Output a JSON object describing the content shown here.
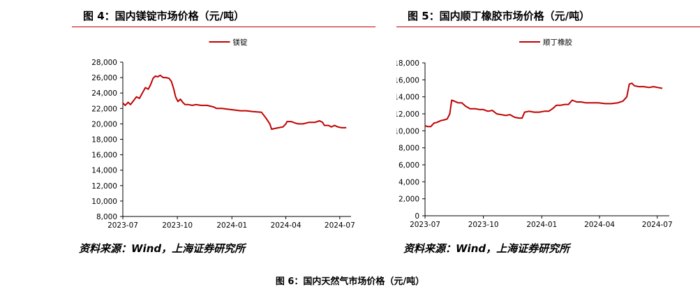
{
  "figures": [
    {
      "title": "图 4：国内镁锭市场价格（元/吨）",
      "source": "资料来源：Wind，上海证券研究所"
    },
    {
      "title": "图 5：国内顺丁橡胶市场价格（元/吨）",
      "source": "资料来源：Wind，上海证券研究所"
    }
  ],
  "caption": "图 6：国内天然气市场价格（元/吨）",
  "chart_data": [
    {
      "type": "line",
      "title": "",
      "xlabel": "",
      "ylabel": "",
      "xlim": [
        "2023-07-01",
        "2024-07-20"
      ],
      "ylim": [
        8000,
        28000
      ],
      "yticks": [
        8000,
        10000,
        12000,
        14000,
        16000,
        18000,
        20000,
        22000,
        24000,
        26000,
        28000
      ],
      "ytick_labels": [
        "8,000",
        "10,000",
        "12,000",
        "14,000",
        "16,000",
        "18,000",
        "20,000",
        "22,000",
        "24,000",
        "26,000",
        "28,000"
      ],
      "xticks": [
        "2023-07-01",
        "2023-10-01",
        "2024-01-01",
        "2024-04-01",
        "2024-07-01"
      ],
      "xtick_labels": [
        "2023-07",
        "2023-10",
        "2024-01",
        "2024-04",
        "2024-07"
      ],
      "grid": false,
      "legend": "top-center",
      "series": [
        {
          "name": "镁锭",
          "color": "#c00000",
          "points": [
            [
              "2023-07-01",
              22700
            ],
            [
              "2023-07-05",
              22400
            ],
            [
              "2023-07-10",
              22800
            ],
            [
              "2023-07-14",
              22500
            ],
            [
              "2023-07-19",
              23000
            ],
            [
              "2023-07-24",
              23500
            ],
            [
              "2023-07-29",
              23300
            ],
            [
              "2023-08-03",
              24000
            ],
            [
              "2023-08-08",
              24700
            ],
            [
              "2023-08-13",
              24500
            ],
            [
              "2023-08-17",
              25100
            ],
            [
              "2023-08-21",
              25900
            ],
            [
              "2023-08-25",
              26200
            ],
            [
              "2023-08-29",
              26100
            ],
            [
              "2023-09-02",
              26300
            ],
            [
              "2023-09-07",
              26000
            ],
            [
              "2023-09-12",
              26000
            ],
            [
              "2023-09-17",
              25900
            ],
            [
              "2023-09-21",
              25500
            ],
            [
              "2023-09-25",
              24500
            ],
            [
              "2023-09-28",
              23500
            ],
            [
              "2023-10-02",
              22900
            ],
            [
              "2023-10-06",
              23200
            ],
            [
              "2023-10-10",
              22800
            ],
            [
              "2023-10-14",
              22500
            ],
            [
              "2023-10-20",
              22500
            ],
            [
              "2023-10-26",
              22400
            ],
            [
              "2023-11-01",
              22500
            ],
            [
              "2023-11-10",
              22400
            ],
            [
              "2023-11-20",
              22400
            ],
            [
              "2023-12-01",
              22200
            ],
            [
              "2023-12-06",
              22000
            ],
            [
              "2023-12-15",
              22000
            ],
            [
              "2023-12-25",
              21900
            ],
            [
              "2024-01-05",
              21800
            ],
            [
              "2024-01-15",
              21700
            ],
            [
              "2024-01-25",
              21700
            ],
            [
              "2024-02-05",
              21600
            ],
            [
              "2024-02-20",
              21500
            ],
            [
              "2024-02-28",
              20700
            ],
            [
              "2024-03-05",
              20000
            ],
            [
              "2024-03-08",
              19300
            ],
            [
              "2024-03-13",
              19400
            ],
            [
              "2024-03-20",
              19500
            ],
            [
              "2024-03-27",
              19600
            ],
            [
              "2024-04-01",
              20000
            ],
            [
              "2024-04-03",
              20300
            ],
            [
              "2024-04-10",
              20300
            ],
            [
              "2024-04-17",
              20100
            ],
            [
              "2024-04-22",
              20000
            ],
            [
              "2024-04-30",
              20000
            ],
            [
              "2024-05-10",
              20200
            ],
            [
              "2024-05-20",
              20200
            ],
            [
              "2024-05-28",
              20400
            ],
            [
              "2024-06-02",
              20200
            ],
            [
              "2024-06-05",
              19800
            ],
            [
              "2024-06-12",
              19800
            ],
            [
              "2024-06-17",
              19600
            ],
            [
              "2024-06-22",
              19800
            ],
            [
              "2024-06-28",
              19600
            ],
            [
              "2024-07-04",
              19500
            ],
            [
              "2024-07-12",
              19500
            ]
          ]
        }
      ]
    },
    {
      "type": "line",
      "title": "",
      "xlabel": "",
      "ylabel": "",
      "xlim": [
        "2023-07-01",
        "2024-07-20"
      ],
      "ylim": [
        0,
        18000
      ],
      "yticks": [
        0,
        2000,
        4000,
        6000,
        8000,
        10000,
        12000,
        14000,
        16000,
        18000
      ],
      "ytick_labels": [
        "0",
        "2,000",
        "4,000",
        "6,000",
        "8,000",
        "10,000",
        "12,000",
        "14,000",
        "16,000",
        "18,000"
      ],
      "xticks": [
        "2023-07-01",
        "2023-10-01",
        "2024-01-01",
        "2024-04-01",
        "2024-07-01"
      ],
      "xtick_labels": [
        "2023-07",
        "2023-10",
        "2024-01",
        "2024-04",
        "2024-07"
      ],
      "grid": false,
      "legend": "top-center",
      "series": [
        {
          "name": "顺丁橡胶",
          "color": "#c00000",
          "points": [
            [
              "2023-07-01",
              10600
            ],
            [
              "2023-07-05",
              10500
            ],
            [
              "2023-07-10",
              10500
            ],
            [
              "2023-07-15",
              10900
            ],
            [
              "2023-07-20",
              11000
            ],
            [
              "2023-07-26",
              11200
            ],
            [
              "2023-08-01",
              11300
            ],
            [
              "2023-08-05",
              11400
            ],
            [
              "2023-08-09",
              12000
            ],
            [
              "2023-08-12",
              13600
            ],
            [
              "2023-08-16",
              13500
            ],
            [
              "2023-08-22",
              13300
            ],
            [
              "2023-08-28",
              13300
            ],
            [
              "2023-09-03",
              12900
            ],
            [
              "2023-09-10",
              12600
            ],
            [
              "2023-09-18",
              12600
            ],
            [
              "2023-09-25",
              12500
            ],
            [
              "2023-10-01",
              12500
            ],
            [
              "2023-10-08",
              12300
            ],
            [
              "2023-10-15",
              12400
            ],
            [
              "2023-10-22",
              12000
            ],
            [
              "2023-10-29",
              11900
            ],
            [
              "2023-11-05",
              11800
            ],
            [
              "2023-11-12",
              11900
            ],
            [
              "2023-11-19",
              11600
            ],
            [
              "2023-11-26",
              11500
            ],
            [
              "2023-12-01",
              11500
            ],
            [
              "2023-12-05",
              12200
            ],
            [
              "2023-12-12",
              12300
            ],
            [
              "2023-12-20",
              12200
            ],
            [
              "2023-12-28",
              12200
            ],
            [
              "2024-01-05",
              12300
            ],
            [
              "2024-01-12",
              12300
            ],
            [
              "2024-01-18",
              12600
            ],
            [
              "2024-01-24",
              13000
            ],
            [
              "2024-01-30",
              13000
            ],
            [
              "2024-02-06",
              13100
            ],
            [
              "2024-02-12",
              13100
            ],
            [
              "2024-02-18",
              13600
            ],
            [
              "2024-02-25",
              13400
            ],
            [
              "2024-03-03",
              13400
            ],
            [
              "2024-03-10",
              13300
            ],
            [
              "2024-03-20",
              13300
            ],
            [
              "2024-03-30",
              13300
            ],
            [
              "2024-04-10",
              13200
            ],
            [
              "2024-04-20",
              13200
            ],
            [
              "2024-04-30",
              13300
            ],
            [
              "2024-05-08",
              13500
            ],
            [
              "2024-05-14",
              14000
            ],
            [
              "2024-05-18",
              15500
            ],
            [
              "2024-05-22",
              15600
            ],
            [
              "2024-05-26",
              15300
            ],
            [
              "2024-06-02",
              15200
            ],
            [
              "2024-06-10",
              15200
            ],
            [
              "2024-06-18",
              15100
            ],
            [
              "2024-06-25",
              15200
            ],
            [
              "2024-07-02",
              15100
            ],
            [
              "2024-07-09",
              15000
            ]
          ]
        }
      ]
    }
  ]
}
